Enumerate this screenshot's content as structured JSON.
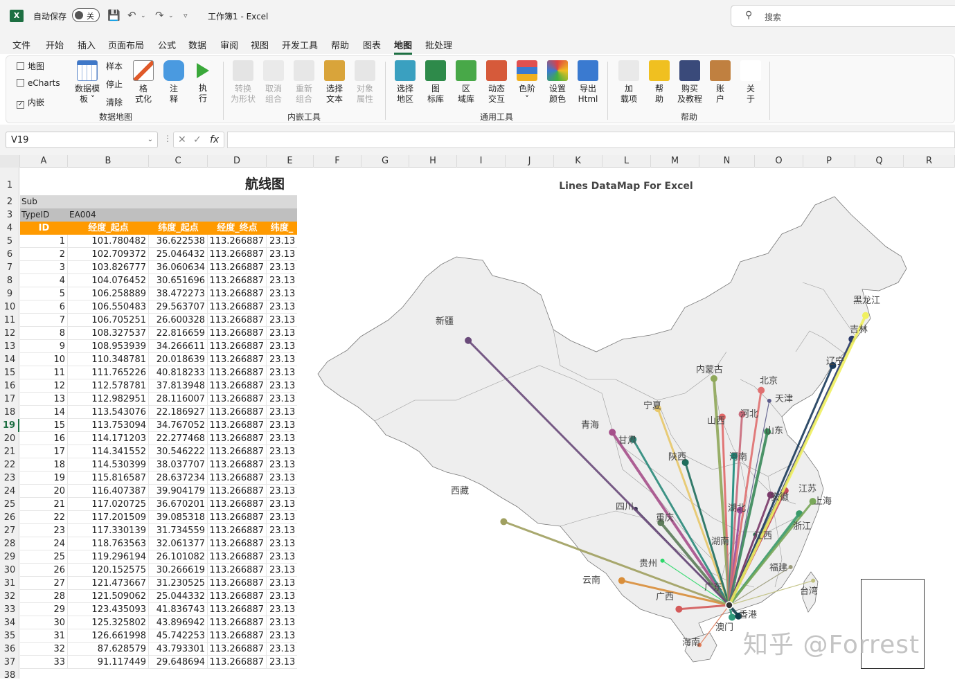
{
  "titlebar": {
    "autosave_label": "自动保存",
    "autosave_state": "关",
    "title": "工作簿1  -  Excel",
    "search_placeholder": "搜索"
  },
  "menu": [
    "文件",
    "开始",
    "插入",
    "页面布局",
    "公式",
    "数据",
    "审阅",
    "视图",
    "开发工具",
    "帮助",
    "图表",
    "地图",
    "批处理"
  ],
  "menu_active": "地图",
  "ribbon": {
    "checks": [
      {
        "label": "地图",
        "checked": false
      },
      {
        "label": "eCharts",
        "checked": false
      },
      {
        "label": "内嵌",
        "checked": true
      }
    ],
    "btn_template": "数据模板",
    "btn_template_l1": "数据模",
    "btn_template_l2": "板 ˅",
    "small": [
      "样本",
      "停止",
      "清除"
    ],
    "btn_format_l1": "格",
    "btn_format_l2": "式化",
    "btn_note_l1": "注",
    "btn_note_l2": "释",
    "btn_run_l1": "执",
    "btn_run_l2": "行",
    "group1": "数据地图",
    "embed": [
      {
        "l1": "转换",
        "l2": "为形状",
        "dim": true
      },
      {
        "l1": "取消",
        "l2": "组合",
        "dim": true
      },
      {
        "l1": "重新",
        "l2": "组合",
        "dim": true
      },
      {
        "l1": "选择",
        "l2": "文本",
        "dim": false
      },
      {
        "l1": "对象",
        "l2": "属性",
        "dim": true
      }
    ],
    "group2": "内嵌工具",
    "general": [
      {
        "l1": "选择",
        "l2": "地区"
      },
      {
        "l1": "图",
        "l2": "标库"
      },
      {
        "l1": "区",
        "l2": "域库"
      },
      {
        "l1": "动态",
        "l2": "交互"
      },
      {
        "l1": "色阶",
        "l2": "˅"
      },
      {
        "l1": "设置",
        "l2": "颜色"
      },
      {
        "l1": "导出",
        "l2": "Html"
      }
    ],
    "group3": "通用工具",
    "help": [
      {
        "l1": "加",
        "l2": "载项"
      },
      {
        "l1": "帮",
        "l2": "助"
      },
      {
        "l1": "购买",
        "l2": "及教程"
      },
      {
        "l1": "账",
        "l2": "户"
      },
      {
        "l1": "关",
        "l2": "于"
      }
    ],
    "group4": "帮助"
  },
  "formula": {
    "namebox": "V19",
    "fx": "fx",
    "value": ""
  },
  "columns": [
    "A",
    "B",
    "C",
    "D",
    "E",
    "F",
    "G",
    "H",
    "I",
    "J",
    "K",
    "L",
    "M",
    "N",
    "O",
    "P",
    "Q",
    "R"
  ],
  "selected_row": 19,
  "sheet": {
    "title": "航线图",
    "sub_label": "Sub",
    "typeid_label": "TypeID",
    "typeid_value": "EA004",
    "headers": [
      "ID",
      "经度_起点",
      "纬度_起点",
      "经度_终点",
      "纬度_终"
    ],
    "rows": [
      [
        "1",
        "101.780482",
        "36.622538",
        "113.266887",
        "23.13"
      ],
      [
        "2",
        "102.709372",
        "25.046432",
        "113.266887",
        "23.13"
      ],
      [
        "3",
        "103.826777",
        "36.060634",
        "113.266887",
        "23.13"
      ],
      [
        "4",
        "104.076452",
        "30.651696",
        "113.266887",
        "23.13"
      ],
      [
        "5",
        "106.258889",
        "38.472273",
        "113.266887",
        "23.13"
      ],
      [
        "6",
        "106.550483",
        "29.563707",
        "113.266887",
        "23.13"
      ],
      [
        "7",
        "106.705251",
        "26.600328",
        "113.266887",
        "23.13"
      ],
      [
        "8",
        "108.327537",
        "22.816659",
        "113.266887",
        "23.13"
      ],
      [
        "9",
        "108.953939",
        "34.266611",
        "113.266887",
        "23.13"
      ],
      [
        "10",
        "110.348781",
        "20.018639",
        "113.266887",
        "23.13"
      ],
      [
        "11",
        "111.765226",
        "40.818233",
        "113.266887",
        "23.13"
      ],
      [
        "12",
        "112.578781",
        "37.813948",
        "113.266887",
        "23.13"
      ],
      [
        "13",
        "112.982951",
        "28.116007",
        "113.266887",
        "23.13"
      ],
      [
        "14",
        "113.543076",
        "22.186927",
        "113.266887",
        "23.13"
      ],
      [
        "15",
        "113.753094",
        "34.767052",
        "113.266887",
        "23.13"
      ],
      [
        "16",
        "114.171203",
        "22.277468",
        "113.266887",
        "23.13"
      ],
      [
        "17",
        "114.341552",
        "30.546222",
        "113.266887",
        "23.13"
      ],
      [
        "18",
        "114.530399",
        "38.037707",
        "113.266887",
        "23.13"
      ],
      [
        "19",
        "115.816587",
        "28.637234",
        "113.266887",
        "23.13"
      ],
      [
        "20",
        "116.407387",
        "39.904179",
        "113.266887",
        "23.13"
      ],
      [
        "21",
        "117.020725",
        "36.670201",
        "113.266887",
        "23.13"
      ],
      [
        "22",
        "117.201509",
        "39.085318",
        "113.266887",
        "23.13"
      ],
      [
        "23",
        "117.330139",
        "31.734559",
        "113.266887",
        "23.13"
      ],
      [
        "24",
        "118.763563",
        "32.061377",
        "113.266887",
        "23.13"
      ],
      [
        "25",
        "119.296194",
        "26.101082",
        "113.266887",
        "23.13"
      ],
      [
        "26",
        "120.152575",
        "30.266619",
        "113.266887",
        "23.13"
      ],
      [
        "27",
        "121.473667",
        "31.230525",
        "113.266887",
        "23.13"
      ],
      [
        "28",
        "121.509062",
        "25.044332",
        "113.266887",
        "23.13"
      ],
      [
        "29",
        "123.435093",
        "41.836743",
        "113.266887",
        "23.13"
      ],
      [
        "30",
        "125.325802",
        "43.896942",
        "113.266887",
        "23.13"
      ],
      [
        "31",
        "126.661998",
        "45.742253",
        "113.266887",
        "23.13"
      ],
      [
        "32",
        "87.628579",
        "43.793301",
        "113.266887",
        "23.13"
      ],
      [
        "33",
        "91.117449",
        "29.648694",
        "113.266887",
        "23.13"
      ]
    ]
  },
  "map": {
    "title": "Lines DataMap For Excel",
    "watermark": "知乎 @Forrest",
    "provinces": [
      "新疆",
      "西藏",
      "青海",
      "甘肃",
      "宁夏",
      "内蒙古",
      "黑龙江",
      "吉林",
      "辽宁",
      "北京",
      "天津",
      "河北",
      "山西",
      "陕西",
      "山东",
      "河南",
      "四川",
      "重庆",
      "湖北",
      "安徽",
      "江苏",
      "上海",
      "浙江",
      "湖南",
      "江西",
      "福建",
      "贵州",
      "云南",
      "广西",
      "广东",
      "香港",
      "澳门",
      "海南",
      "台湾"
    ],
    "line_colors": [
      "#a6508b",
      "#d98e3a",
      "#2a8a7a",
      "#3b3554",
      "#e8c86a",
      "#5d7d5a",
      "#2dd86a",
      "#d45a5a",
      "#1f6e5c",
      "#e07b58",
      "#8fa85a",
      "#e06868",
      "#8a9a8a",
      "#2e9a7a",
      "#1a8a7a",
      "#0f3f4a",
      "#9a4a9a",
      "#c96a7a",
      "#2a6a4a",
      "#e07070",
      "#3a8a5a",
      "#5a5a8a",
      "#7a3a6a",
      "#c44a5a",
      "#9a9a7a",
      "#3a9a6a",
      "#7aa85a",
      "#c0c080",
      "#1a3a5a",
      "#2a3a6a",
      "#f0f060",
      "#6a4a7a",
      "#a0a060"
    ]
  }
}
